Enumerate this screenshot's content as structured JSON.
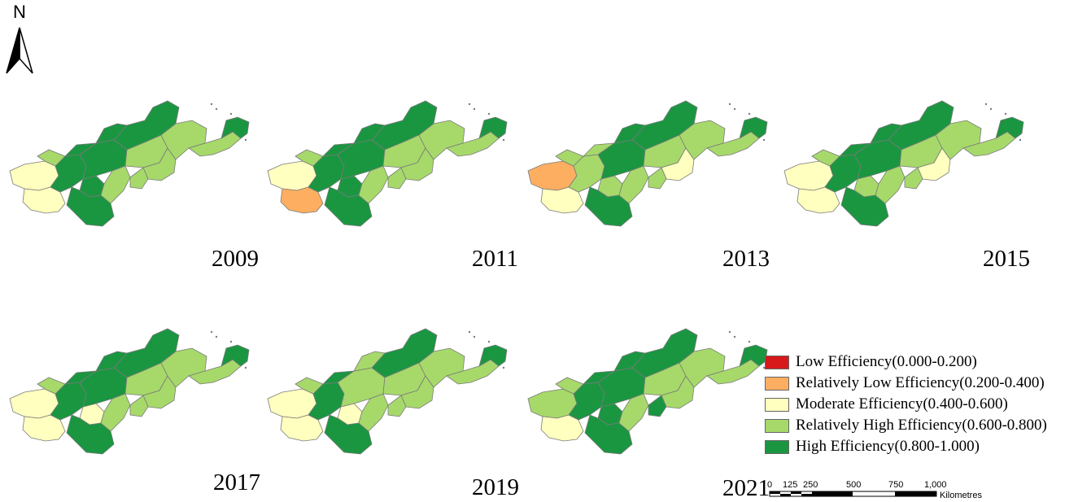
{
  "north_arrow": {
    "letter": "N"
  },
  "colors": {
    "low": "#d7191c",
    "relatively_low": "#fdae61",
    "moderate": "#ffffbf",
    "relatively_high": "#a6d96a",
    "high": "#1a9641",
    "border": "#7a7a7a"
  },
  "maps": [
    {
      "year": "2009",
      "regions": [
        "moderate",
        "moderate",
        "high",
        "high",
        "high",
        "high",
        "relatively_high",
        "high",
        "relatively_high",
        "relatively_high",
        "relatively_high",
        "relatively_high",
        "high",
        "high",
        "relatively_high",
        "relatively_high",
        "high"
      ]
    },
    {
      "year": "2011",
      "regions": [
        "moderate",
        "relatively_low",
        "high",
        "high",
        "high",
        "high",
        "relatively_high",
        "high",
        "relatively_high",
        "relatively_high",
        "relatively_high",
        "relatively_high",
        "high",
        "high",
        "relatively_high",
        "relatively_high",
        "high"
      ]
    },
    {
      "year": "2013",
      "regions": [
        "relatively_low",
        "moderate",
        "relatively_high",
        "relatively_high",
        "high",
        "high",
        "relatively_high",
        "high",
        "relatively_high",
        "moderate",
        "relatively_high",
        "relatively_high",
        "high",
        "relatively_high",
        "relatively_high",
        "relatively_high",
        "high"
      ]
    },
    {
      "year": "2015",
      "regions": [
        "moderate",
        "moderate",
        "high",
        "relatively_high",
        "high",
        "high",
        "relatively_high",
        "high",
        "relatively_high",
        "moderate",
        "relatively_high",
        "relatively_high",
        "high",
        "high",
        "relatively_high",
        "relatively_high",
        "high"
      ]
    },
    {
      "year": "2017",
      "regions": [
        "moderate",
        "moderate",
        "high",
        "moderate",
        "high",
        "high",
        "relatively_high",
        "high",
        "relatively_high",
        "relatively_high",
        "relatively_high",
        "relatively_high",
        "high",
        "high",
        "relatively_high",
        "relatively_high",
        "high"
      ]
    },
    {
      "year": "2019",
      "regions": [
        "moderate",
        "moderate",
        "high",
        "moderate",
        "relatively_high",
        "high",
        "relatively_high",
        "high",
        "relatively_high",
        "relatively_high",
        "relatively_high",
        "relatively_high",
        "relatively_high",
        "high",
        "relatively_high",
        "relatively_high",
        "high"
      ]
    },
    {
      "year": "2021",
      "regions": [
        "relatively_high",
        "moderate",
        "high",
        "high",
        "high",
        "high",
        "relatively_high",
        "high",
        "relatively_high",
        "relatively_high",
        "relatively_high",
        "high",
        "high",
        "high",
        "relatively_high",
        "relatively_high",
        "high"
      ]
    }
  ],
  "legend": [
    {
      "label": "Low Efficiency(0.000-0.200)",
      "class": "low"
    },
    {
      "label": "Relatively Low Efficiency(0.200-0.400)",
      "class": "relatively_low"
    },
    {
      "label": "Moderate Efficiency(0.400-0.600)",
      "class": "moderate"
    },
    {
      "label": "Relatively High Efficiency(0.600-0.800)",
      "class": "relatively_high"
    },
    {
      "label": "High Efficiency(0.800-1.000)",
      "class": "high"
    }
  ],
  "scale_bar": {
    "ticks": [
      "0",
      "125",
      "250",
      "500",
      "750",
      "1,000"
    ],
    "unit": "Kilometres"
  }
}
